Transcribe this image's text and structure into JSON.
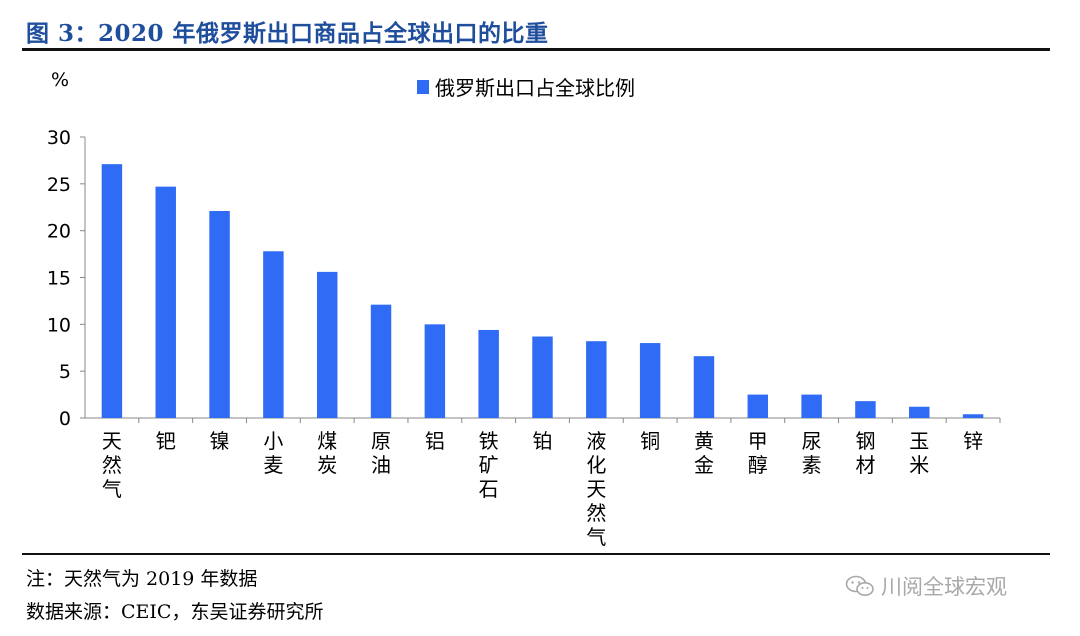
{
  "figure": {
    "title": "图 3：2020 年俄罗斯出口商品占全球出口的比重",
    "note": "注：天然气为 2019 年数据",
    "source": "数据来源：CEIC，东吴证券研究所",
    "watermark": "川阅全球宏观",
    "watermark_icon": "wechat-icon"
  },
  "colors": {
    "title": "#1f4e9d",
    "bar": "#2f6bf5",
    "axis": "#888888"
  },
  "chart_data": {
    "type": "bar",
    "unit_label": "%",
    "categories": [
      "天然气",
      "钯",
      "镍",
      "小麦",
      "煤炭",
      "原油",
      "铝",
      "铁矿石",
      "铂",
      "液化天然气",
      "铜",
      "黄金",
      "甲醇",
      "尿素",
      "钢材",
      "玉米",
      "锌"
    ],
    "series": [
      {
        "name": "俄罗斯出口占全球比例",
        "values": [
          27.1,
          24.7,
          22.1,
          17.8,
          15.6,
          12.1,
          10.0,
          9.4,
          8.7,
          8.2,
          8.0,
          6.6,
          2.5,
          2.5,
          1.8,
          1.2,
          0.4
        ]
      }
    ],
    "ylim": [
      0,
      30
    ],
    "yticks": [
      0,
      5,
      10,
      15,
      20,
      25,
      30
    ],
    "grid": false,
    "legend_position": "top-center"
  }
}
